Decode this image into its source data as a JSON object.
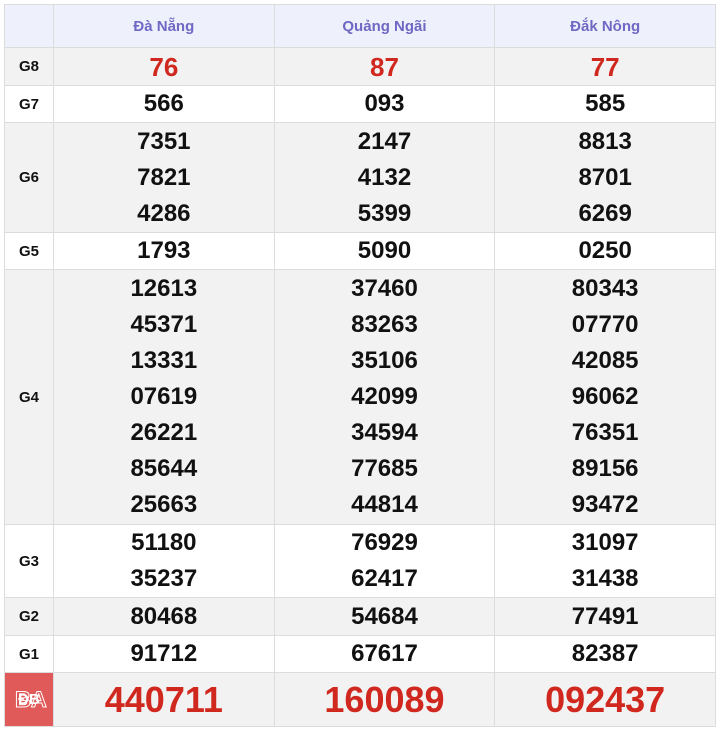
{
  "header": {
    "provinces": [
      "Đà Nẵng",
      "Quảng Ngãi",
      "Đắk Nông"
    ]
  },
  "rows": [
    {
      "label": "G8",
      "values": [
        [
          "76"
        ],
        [
          "87"
        ],
        [
          "77"
        ]
      ]
    },
    {
      "label": "G7",
      "values": [
        [
          "566"
        ],
        [
          "093"
        ],
        [
          "585"
        ]
      ]
    },
    {
      "label": "G6",
      "values": [
        [
          "7351",
          "7821",
          "4286"
        ],
        [
          "2147",
          "4132",
          "5399"
        ],
        [
          "8813",
          "8701",
          "6269"
        ]
      ]
    },
    {
      "label": "G5",
      "values": [
        [
          "1793"
        ],
        [
          "5090"
        ],
        [
          "0250"
        ]
      ]
    },
    {
      "label": "G4",
      "values": [
        [
          "12613",
          "45371",
          "13331",
          "07619",
          "26221",
          "85644",
          "25663"
        ],
        [
          "37460",
          "83263",
          "35106",
          "42099",
          "34594",
          "77685",
          "44814"
        ],
        [
          "80343",
          "07770",
          "42085",
          "96062",
          "76351",
          "89156",
          "93472"
        ]
      ]
    },
    {
      "label": "G3",
      "values": [
        [
          "51180",
          "35237"
        ],
        [
          "76929",
          "62417"
        ],
        [
          "31097",
          "31438"
        ]
      ]
    },
    {
      "label": "G2",
      "values": [
        [
          "80468"
        ],
        [
          "54684"
        ],
        [
          "77491"
        ]
      ]
    },
    {
      "label": "G1",
      "values": [
        [
          "91712"
        ],
        [
          "67617"
        ],
        [
          "82387"
        ]
      ]
    },
    {
      "label": "ĐB",
      "values": [
        [
          "440711"
        ],
        [
          "160089"
        ],
        [
          "092437"
        ]
      ]
    }
  ],
  "watermark": "BA",
  "colors": {
    "header_text": "#6f68c4",
    "highlight": "#d0281e",
    "db_label_bg": "#e05a5a"
  }
}
